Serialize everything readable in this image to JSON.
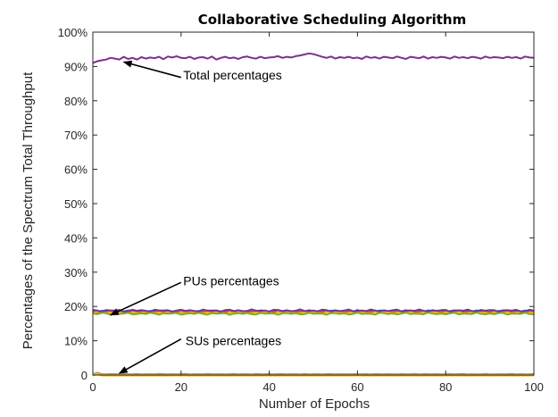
{
  "chart_data": {
    "type": "line",
    "title": "Collaborative Scheduling Algorithm",
    "xlabel": "Number of Epochs",
    "ylabel": "Percentages of the Spectrum Total Throughput",
    "xlim": [
      0,
      100
    ],
    "ylim": [
      0,
      100
    ],
    "xticks": [
      0,
      20,
      40,
      60,
      80,
      100
    ],
    "yticks": [
      0,
      10,
      20,
      30,
      40,
      50,
      60,
      70,
      80,
      90,
      100
    ],
    "ytick_labels": [
      "0",
      "10%",
      "20%",
      "30%",
      "40%",
      "50%",
      "60%",
      "70%",
      "80%",
      "90%",
      "100%"
    ],
    "grid": false,
    "series": [
      {
        "color": "#7e2f8e",
        "kind": "total",
        "x_start": 0,
        "x_step": 1,
        "values": [
          91,
          91.5,
          91.8,
          92,
          92.5,
          92.3,
          92,
          92.8,
          92.2,
          92.5,
          92,
          92.7,
          92.3,
          92.6,
          92.4,
          92.8,
          92.1,
          92.9,
          92.6,
          93,
          92.5,
          92.4,
          92.8,
          92.2,
          92.6,
          92.7,
          92.3,
          92.9,
          92,
          92.5,
          92.8,
          92.4,
          92.6,
          92.2,
          92.7,
          92.9,
          92.5,
          92.3,
          92.8,
          92.4,
          92.6,
          92.7,
          93,
          92.5,
          92.8,
          92.6,
          93,
          93.2,
          93.5,
          93.8,
          93.6,
          93.2,
          92.8,
          92.5,
          92.9,
          92.3,
          92.7,
          92.5,
          92.8,
          92.4,
          92.6,
          92.2,
          92.9,
          92.5,
          92.7,
          92.3,
          92.8,
          92.6,
          92.4,
          92.9,
          92.5,
          92.2,
          92.8,
          92.6,
          92.4,
          92.9,
          92.3,
          92.7,
          92.5,
          92.8,
          92.6,
          92.3,
          92.9,
          92.5,
          92.7,
          92.4,
          92.8,
          92.6,
          92.3,
          92.9,
          92.5,
          92.7,
          92.6,
          92.4,
          92.8,
          92.5,
          92.7,
          92.3,
          92.9,
          92.6,
          92.5
        ]
      },
      {
        "color": "#0072bd",
        "kind": "pu",
        "base": 18.6
      },
      {
        "color": "#d95319",
        "kind": "pu",
        "base": 18.4
      },
      {
        "color": "#edb120",
        "kind": "pu",
        "base": 18.2
      },
      {
        "color": "#7e2f8e",
        "kind": "pu",
        "base": 18.8
      },
      {
        "color": "#77ac30",
        "kind": "pu",
        "base": 17.9
      },
      {
        "color": "#0072bd",
        "kind": "su",
        "base": 0.1
      },
      {
        "color": "#d95319",
        "kind": "su",
        "base": 0.05
      },
      {
        "color": "#edb120",
        "kind": "su",
        "base": 0.0
      }
    ],
    "annotations": [
      {
        "text": "Total percentages",
        "text_x": 20.5,
        "text_y": 87.5,
        "arrow_from": [
          20.0,
          86.8
        ],
        "arrow_to": [
          7,
          91.3
        ]
      },
      {
        "text": "PUs percentages",
        "text_x": 20.5,
        "text_y": 27.5,
        "arrow_from": [
          20.0,
          27.0
        ],
        "arrow_to": [
          4,
          17.5
        ]
      },
      {
        "text": "SUs percentages",
        "text_x": 21.0,
        "text_y": 10.0,
        "arrow_from": [
          20.0,
          10.5
        ],
        "arrow_to": [
          6,
          0.5
        ]
      }
    ]
  }
}
